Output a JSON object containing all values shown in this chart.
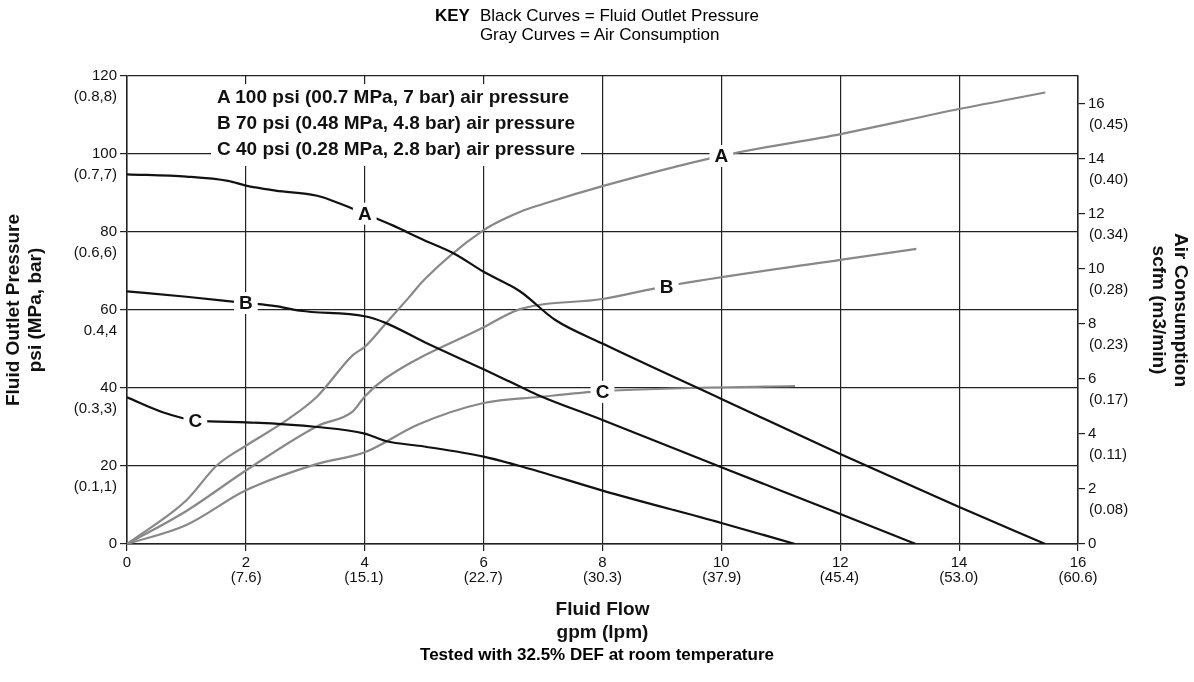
{
  "chart_data": {
    "type": "line",
    "title": "KEY",
    "subtitle": "Black Curves = Fluid Outlet Pressure\nGray Curves = Air Consumption",
    "xlabel": "Fluid Flow\ngpm (lpm)",
    "ylabel": "Fluid Outlet Pressure\npsi (MPa, bar)",
    "y2label": "Air Consumption\nscfm (m3/min)",
    "xlim": [
      0,
      16
    ],
    "xticks": [
      0,
      2,
      4,
      6,
      8,
      10,
      12,
      14,
      16
    ],
    "x2lim": [
      0,
      60.6
    ],
    "x2ticks": [
      {
        "value": 7.6,
        "label": "(7.6)"
      },
      {
        "value": 15.1,
        "label": "(15.1)"
      },
      {
        "value": 22.7,
        "label": "(22.7)"
      },
      {
        "value": 30.3,
        "label": "(30.3)"
      },
      {
        "value": 37.9,
        "label": "(37.9)"
      },
      {
        "value": 45.4,
        "label": "(45.4)"
      },
      {
        "value": 53.0,
        "label": "(53.0)"
      },
      {
        "value": 60.6,
        "label": "(60.6)"
      }
    ],
    "ylim": [
      0,
      120
    ],
    "yticks": [
      0,
      20,
      40,
      60,
      80,
      100,
      120
    ],
    "y2lim": [
      0,
      17
    ],
    "y2ticks": [
      0,
      2,
      4,
      6,
      8,
      10,
      12,
      14,
      16
    ],
    "grid": true,
    "legend": false,
    "marker": "none",
    "line_style": "solid",
    "series": [
      {
        "color": "#111111",
        "x": [
          0,
          1,
          1.7,
          2,
          2.5,
          3.2,
          3.6,
          4,
          4.47,
          5,
          5.5,
          6,
          6.61,
          7.2,
          8,
          10,
          12,
          14,
          15.45
        ],
        "values": [
          94.8,
          94.2,
          93.1,
          91.9,
          90.6,
          89.3,
          87.2,
          84.7,
          81.7,
          77.9,
          74.5,
          69.8,
          64.8,
          57.5,
          51.4,
          37.2,
          23.1,
          9.5,
          0
        ]
      },
      {
        "color": "#111111",
        "x": [
          0,
          1,
          2,
          2.5,
          2.91,
          4,
          4.35,
          5,
          6,
          6.61,
          6.93,
          8,
          10,
          12,
          13.27
        ],
        "values": [
          64.8,
          63.4,
          61.8,
          61,
          59.8,
          58.4,
          56.7,
          51.8,
          44.8,
          40.4,
          38.1,
          31.8,
          19.7,
          7.7,
          0
        ]
      },
      {
        "color": "#111111",
        "x": [
          0,
          0.6,
          1.15,
          2,
          3.2,
          4,
          4.35,
          5,
          6,
          6.61,
          6.93,
          8,
          10,
          11.24
        ],
        "values": [
          37.6,
          33.8,
          31.7,
          31.2,
          30,
          28.3,
          26.4,
          25,
          22.4,
          20,
          18.6,
          13.7,
          5.4,
          0
        ]
      },
      {
        "color": "#888888",
        "axis": "y2",
        "x": [
          0,
          1,
          1.51,
          2,
          2.66,
          3.2,
          3.8,
          4,
          4.35,
          4.74,
          5,
          6,
          6.61,
          7,
          8,
          10,
          12.03,
          14,
          15.45
        ],
        "values": [
          0,
          1.59,
          2.85,
          3.57,
          4.46,
          5.36,
          6.86,
          7.16,
          8.0,
          8.95,
          9.6,
          11.4,
          12.06,
          12.35,
          13.0,
          14.1,
          14.9,
          15.8,
          16.4
        ]
      },
      {
        "color": "#888888",
        "axis": "y2",
        "x": [
          0,
          1,
          2,
          3.2,
          3.8,
          4,
          4.35,
          6,
          6.61,
          8,
          9.08,
          12.03,
          13.28
        ],
        "values": [
          0,
          1.2,
          2.67,
          4.28,
          4.82,
          5.36,
          6.02,
          7.87,
          8.53,
          8.9,
          9.37,
          10.33,
          10.72
        ]
      },
      {
        "color": "#888888",
        "axis": "y2",
        "x": [
          0,
          1,
          2,
          3.2,
          4,
          4.9,
          6,
          6.93,
          8,
          11.24
        ],
        "values": [
          0,
          0.69,
          1.95,
          2.91,
          3.33,
          4.34,
          5.12,
          5.34,
          5.55,
          5.74
        ]
      }
    ],
    "annotations": [
      "A 100 psi (00.7 MPa, 7 bar) air pressure",
      "B 70 psi (0.48 MPa, 4.8 bar) air pressure",
      "C 40 psi (0.28 MPa, 2.8 bar) air pressure",
      "(0.1,1)",
      "(0.3,3)",
      "0.4,4",
      "(0.6,6)",
      "(0.7,7)",
      "(0.8,8)",
      "(0.08)",
      "(0.11)",
      "(0.17)",
      "(0.23)",
      "(0.28)",
      "(0.34)",
      "(0.40)",
      "(0.45)",
      {
        "text": "A",
        "x": 4,
        "y": 84.7
      },
      {
        "text": "B",
        "x": 2,
        "y": 61.8
      },
      {
        "text": "C",
        "x": 1.15,
        "y": 31.7
      },
      {
        "text": "A",
        "x": 10,
        "y": 99.5
      },
      {
        "text": "B",
        "x": 9.08,
        "y": 66
      },
      {
        "text": "C",
        "x": 8,
        "y": 39
      },
      "Tested with 32.5% DEF at room temperature"
    ]
  }
}
